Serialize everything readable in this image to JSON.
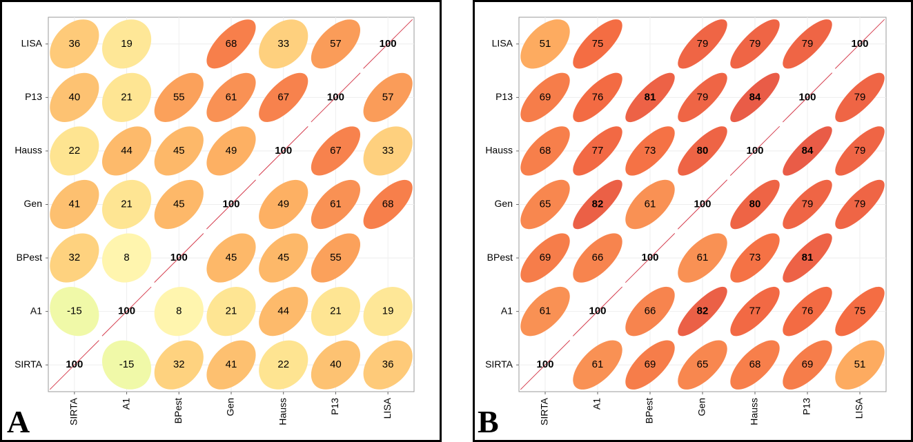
{
  "chart_data": [
    {
      "type": "correlation-ellipse",
      "label": "A",
      "variables": [
        "SIRTA",
        "A1",
        "BPest",
        "Gen",
        "Hauss",
        "P13",
        "LISA"
      ],
      "matrix": [
        [
          100,
          -15,
          32,
          41,
          22,
          40,
          36
        ],
        [
          -15,
          100,
          8,
          21,
          44,
          21,
          19
        ],
        [
          32,
          8,
          100,
          45,
          45,
          55,
          null
        ],
        [
          41,
          21,
          45,
          100,
          49,
          61,
          68
        ],
        [
          22,
          44,
          45,
          49,
          100,
          67,
          33
        ],
        [
          40,
          21,
          55,
          61,
          67,
          100,
          57
        ],
        [
          36,
          19,
          null,
          68,
          33,
          57,
          100
        ]
      ],
      "clim": [
        -100,
        100
      ],
      "colors": [
        "#3288bd",
        "#66c2a5",
        "#abdda4",
        "#e6f598",
        "#ffffbf",
        "#fee08b",
        "#fdae61",
        "#f46d43",
        "#d53e4f"
      ],
      "bold_threshold": 80,
      "grid": true
    },
    {
      "type": "correlation-ellipse",
      "label": "B",
      "variables": [
        "SIRTA",
        "A1",
        "BPest",
        "Gen",
        "Hauss",
        "P13",
        "LISA"
      ],
      "matrix": [
        [
          100,
          61,
          69,
          65,
          68,
          69,
          51
        ],
        [
          61,
          100,
          66,
          82,
          77,
          76,
          75
        ],
        [
          69,
          66,
          100,
          61,
          73,
          81,
          null
        ],
        [
          65,
          82,
          61,
          100,
          80,
          79,
          79
        ],
        [
          68,
          77,
          73,
          80,
          100,
          84,
          79
        ],
        [
          69,
          76,
          81,
          79,
          84,
          100,
          79
        ],
        [
          51,
          75,
          null,
          79,
          79,
          79,
          100
        ]
      ],
      "clim": [
        -100,
        100
      ],
      "colors": [
        "#3288bd",
        "#66c2a5",
        "#abdda4",
        "#e6f598",
        "#ffffbf",
        "#fee08b",
        "#fdae61",
        "#f46d43",
        "#d53e4f"
      ],
      "bold_threshold": 80,
      "grid": true
    }
  ]
}
